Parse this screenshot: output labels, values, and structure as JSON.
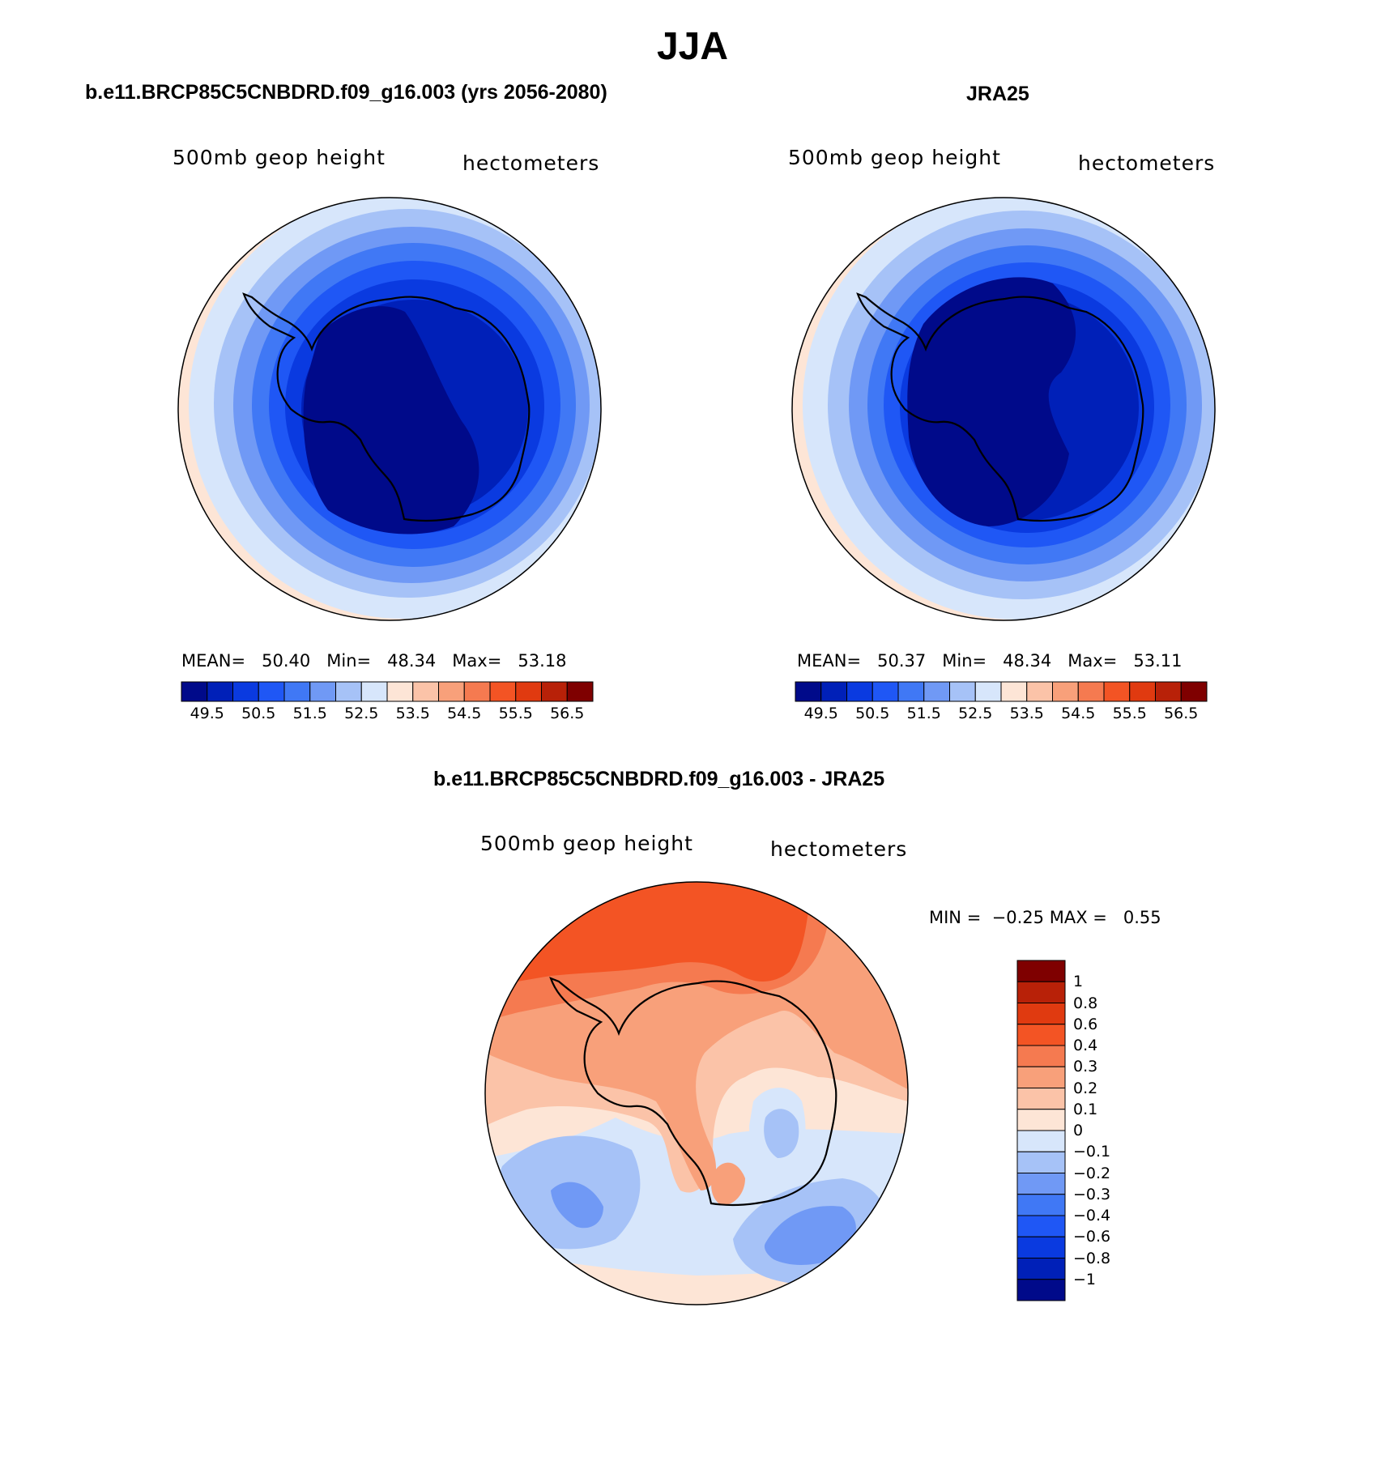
{
  "figure_title": "JJA",
  "panels": {
    "model": {
      "title": "b.e11.BRCP85C5CNBDRD.f09_g16.003 (yrs 2056-2080)",
      "variable_label": "500mb geop height",
      "units_label": "hectometers",
      "stats": {
        "mean_label": "MEAN=",
        "mean": "50.40",
        "min_label": "Min=",
        "min": "48.34",
        "max_label": "Max=",
        "max": "53.18"
      }
    },
    "obs": {
      "title": "JRA25",
      "variable_label": "500mb geop height",
      "units_label": "hectometers",
      "stats": {
        "mean_label": "MEAN=",
        "mean": "50.37",
        "min_label": "Min=",
        "min": "48.34",
        "max_label": "Max=",
        "max": "53.11"
      }
    },
    "diff": {
      "title": "b.e11.BRCP85C5CNBDRD.f09_g16.003 - JRA25",
      "variable_label": "500mb geop height",
      "units_label": "hectometers",
      "stats": {
        "min_label": "MIN =",
        "min": "−0.25",
        "max_label": "MAX =",
        "max": "0.55"
      }
    }
  },
  "colorbars": {
    "abs": {
      "tick_labels": [
        "49.5",
        "50.5",
        "51.5",
        "52.5",
        "53.5",
        "54.5",
        "55.5",
        "56.5"
      ],
      "colors": [
        "#000a8a",
        "#0020b8",
        "#0a3ae0",
        "#1f57f5",
        "#4078f5",
        "#7099f5",
        "#a6c2f7",
        "#d7e6fb",
        "#fde5d6",
        "#fbc3a8",
        "#f8a07a",
        "#f57a50",
        "#f35424",
        "#e03a10",
        "#b82108",
        "#7f0000"
      ]
    },
    "diff": {
      "tick_labels": [
        "1",
        "0.8",
        "0.6",
        "0.4",
        "0.3",
        "0.2",
        "0.1",
        "0",
        "−0.1",
        "−0.2",
        "−0.3",
        "−0.4",
        "−0.6",
        "−0.8",
        "−1"
      ],
      "colors": [
        "#7f0000",
        "#b82108",
        "#e03a10",
        "#f35424",
        "#f57a50",
        "#f8a07a",
        "#fbc3a8",
        "#fde5d6",
        "#d7e6fb",
        "#a6c2f7",
        "#7099f5",
        "#4078f5",
        "#1f57f5",
        "#0a3ae0",
        "#0020b8",
        "#000a8a"
      ]
    }
  },
  "chart_data": [
    {
      "type": "heatmap",
      "projection": "south polar stereographic",
      "title": "b.e11.BRCP85C5CNBDRD.f09_g16.003 (yrs 2056-2080)",
      "variable": "500mb geop height",
      "units": "hectometers",
      "mean": 50.4,
      "min": 48.34,
      "max": 53.18,
      "contour_levels": [
        49.5,
        50.0,
        50.5,
        51.0,
        51.5,
        52.0,
        52.5,
        53.0,
        53.5,
        54.0,
        54.5,
        55.0,
        55.5,
        56.0,
        56.5
      ],
      "ring_levels_outer_to_inner": [
        53.0,
        52.5,
        52.0,
        51.5,
        51.0,
        50.5,
        50.0,
        49.5
      ]
    },
    {
      "type": "heatmap",
      "projection": "south polar stereographic",
      "title": "JRA25",
      "variable": "500mb geop height",
      "units": "hectometers",
      "mean": 50.37,
      "min": 48.34,
      "max": 53.11,
      "contour_levels": [
        49.5,
        50.0,
        50.5,
        51.0,
        51.5,
        52.0,
        52.5,
        53.0,
        53.5,
        54.0,
        54.5,
        55.0,
        55.5,
        56.0,
        56.5
      ],
      "ring_levels_outer_to_inner": [
        53.0,
        52.5,
        52.0,
        51.5,
        51.0,
        50.5,
        50.0,
        49.5
      ]
    },
    {
      "type": "heatmap",
      "projection": "south polar stereographic",
      "title": "b.e11.BRCP85C5CNBDRD.f09_g16.003 - JRA25",
      "variable": "500mb geop height",
      "units": "hectometers",
      "min": -0.25,
      "max": 0.55,
      "contour_levels": [
        -1,
        -0.8,
        -0.6,
        -0.4,
        -0.3,
        -0.2,
        -0.1,
        0,
        0.1,
        0.2,
        0.3,
        0.4,
        0.6,
        0.8,
        1
      ],
      "regions": [
        {
          "area": "top (Atlantic/Weddell side)",
          "level": 0.4
        },
        {
          "area": "upper-right",
          "level": 0.3
        },
        {
          "area": "center/middle",
          "level": 0.2
        },
        {
          "area": "lower-left lows",
          "level": -0.2
        },
        {
          "area": "lower-right low",
          "level": -0.3
        },
        {
          "area": "bottom",
          "level": -0.1
        }
      ]
    }
  ]
}
